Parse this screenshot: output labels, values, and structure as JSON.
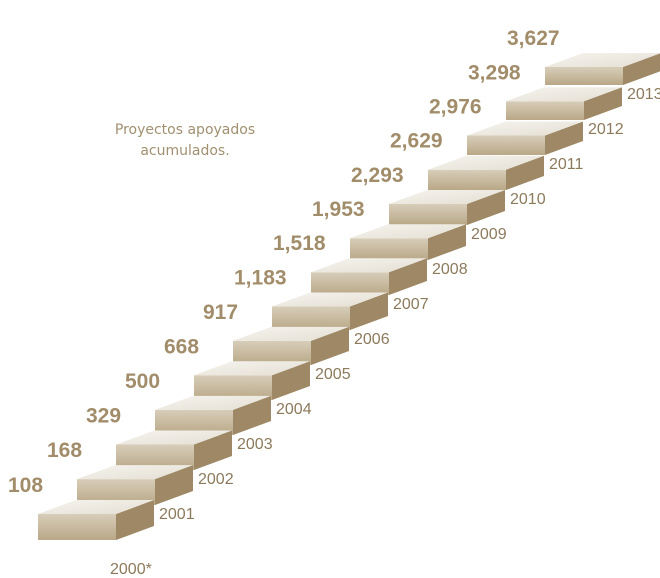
{
  "chart_data": {
    "type": "bar",
    "title": "",
    "annotation": [
      "Proyectos apoyados",
      "acumulados."
    ],
    "categories": [
      "2000*",
      "2001",
      "2002",
      "2003",
      "2004",
      "2005",
      "2006",
      "2007",
      "2008",
      "2009",
      "2010",
      "2011",
      "2012",
      "2013"
    ],
    "values": [
      108,
      168,
      329,
      500,
      668,
      917,
      1183,
      1518,
      1953,
      2293,
      2629,
      2976,
      3298,
      3627
    ],
    "value_labels": [
      "108",
      "168",
      "329",
      "500",
      "668",
      "917",
      "1,183",
      "1,518",
      "1,953",
      "2,293",
      "2,629",
      "2,976",
      "3,298",
      "3,627"
    ],
    "style": "3d-staircase",
    "colors": {
      "top": "#eeebe4",
      "front": "#c8b99d",
      "side": "#9e8865",
      "value_text": "#a28d6b",
      "year_text": "#8c7a5c",
      "note_text": "#a09070"
    }
  }
}
